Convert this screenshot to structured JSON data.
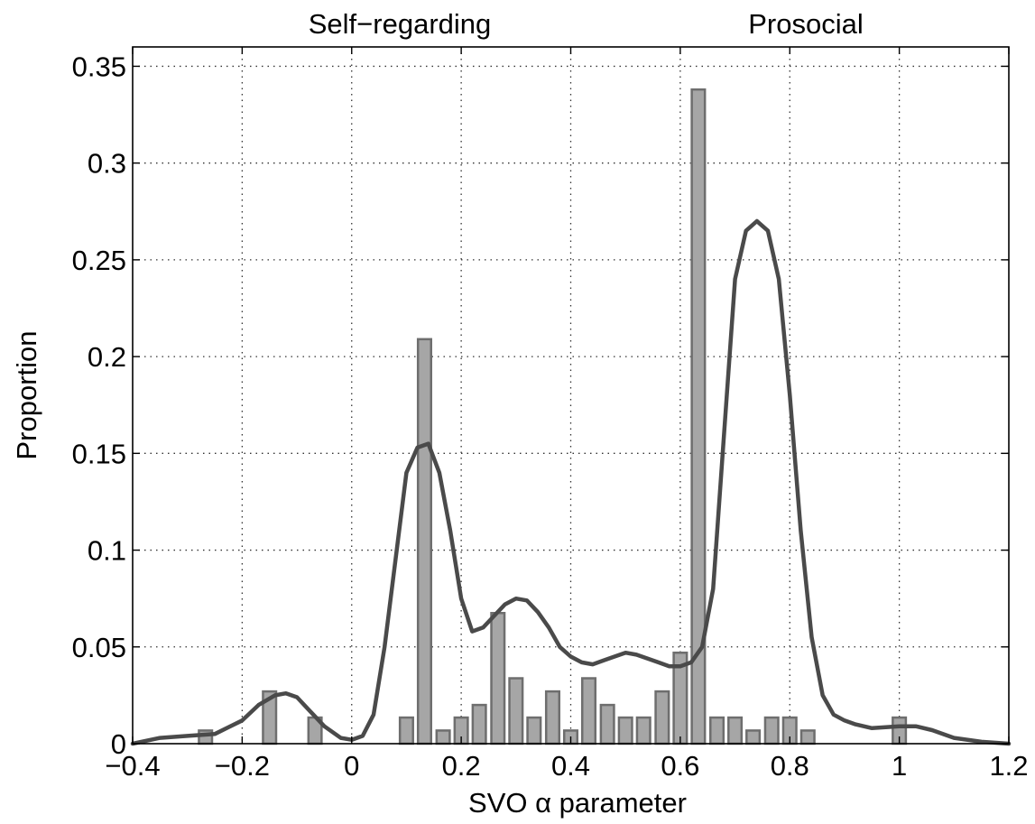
{
  "chart_data": {
    "type": "bar",
    "xlabel": "SVO α parameter",
    "ylabel": "Proportion",
    "region_labels": [
      "Self−regarding",
      "Prosocial"
    ],
    "xlim": [
      -0.4,
      1.2
    ],
    "ylim": [
      0,
      0.36
    ],
    "x_ticks": [
      -0.4,
      -0.2,
      0,
      0.2,
      0.4,
      0.6,
      0.8,
      1,
      1.2
    ],
    "x_tick_labels": [
      "−0.4",
      "−0.2",
      "0",
      "0.2",
      "0.4",
      "0.6",
      "0.8",
      "1",
      "1.2"
    ],
    "y_ticks": [
      0,
      0.05,
      0.1,
      0.15,
      0.2,
      0.25,
      0.3,
      0.35
    ],
    "y_tick_labels": [
      "0",
      "0.05",
      "0.1",
      "0.15",
      "0.2",
      "0.25",
      "0.3",
      "0.35"
    ],
    "grid": true,
    "bin_width": 0.0333,
    "bars": {
      "x": [
        -0.267,
        -0.15,
        -0.067,
        0.1,
        0.133,
        0.167,
        0.2,
        0.233,
        0.267,
        0.3,
        0.333,
        0.367,
        0.4,
        0.433,
        0.467,
        0.5,
        0.533,
        0.567,
        0.6,
        0.633,
        0.667,
        0.7,
        0.733,
        0.767,
        0.8,
        0.833,
        1.0
      ],
      "values": [
        0.0068,
        0.027,
        0.0135,
        0.0135,
        0.209,
        0.0068,
        0.0135,
        0.02,
        0.0675,
        0.0338,
        0.0135,
        0.027,
        0.0068,
        0.0338,
        0.02,
        0.0135,
        0.0135,
        0.027,
        0.047,
        0.338,
        0.0135,
        0.0135,
        0.0068,
        0.0135,
        0.0135,
        0.0068,
        0.0135
      ]
    },
    "density": {
      "x": [
        -0.4,
        -0.35,
        -0.3,
        -0.25,
        -0.2,
        -0.17,
        -0.14,
        -0.12,
        -0.1,
        -0.08,
        -0.05,
        -0.02,
        0.0,
        0.02,
        0.04,
        0.06,
        0.08,
        0.1,
        0.12,
        0.14,
        0.16,
        0.18,
        0.2,
        0.22,
        0.24,
        0.26,
        0.28,
        0.3,
        0.32,
        0.34,
        0.36,
        0.38,
        0.4,
        0.42,
        0.44,
        0.46,
        0.48,
        0.5,
        0.52,
        0.54,
        0.56,
        0.58,
        0.6,
        0.62,
        0.64,
        0.66,
        0.68,
        0.7,
        0.72,
        0.74,
        0.76,
        0.78,
        0.8,
        0.82,
        0.84,
        0.86,
        0.88,
        0.9,
        0.92,
        0.95,
        1.0,
        1.03,
        1.06,
        1.1,
        1.15,
        1.2
      ],
      "y": [
        0.0,
        0.003,
        0.004,
        0.005,
        0.012,
        0.02,
        0.025,
        0.026,
        0.024,
        0.018,
        0.009,
        0.003,
        0.002,
        0.004,
        0.015,
        0.05,
        0.095,
        0.14,
        0.153,
        0.155,
        0.14,
        0.11,
        0.075,
        0.058,
        0.06,
        0.066,
        0.072,
        0.075,
        0.074,
        0.068,
        0.06,
        0.05,
        0.045,
        0.042,
        0.041,
        0.043,
        0.045,
        0.047,
        0.046,
        0.044,
        0.042,
        0.04,
        0.04,
        0.042,
        0.05,
        0.08,
        0.16,
        0.24,
        0.265,
        0.27,
        0.265,
        0.24,
        0.18,
        0.11,
        0.055,
        0.025,
        0.015,
        0.012,
        0.01,
        0.008,
        0.009,
        0.009,
        0.007,
        0.003,
        0.001,
        0.0
      ]
    }
  }
}
